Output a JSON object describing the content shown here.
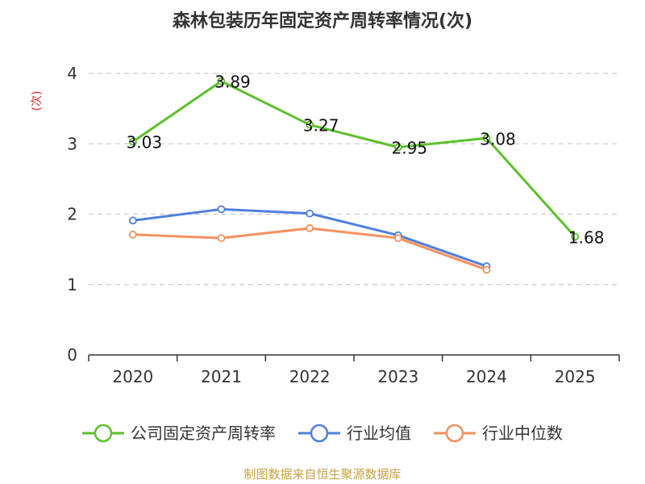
{
  "chart_data": {
    "type": "line",
    "title": "森林包装历年固定资产周转率情况(次)",
    "ylabel": "(次)",
    "xlabel": "",
    "categories": [
      "2020",
      "2021",
      "2022",
      "2023",
      "2024",
      "2025"
    ],
    "ylim": [
      0,
      4
    ],
    "yticks": [
      0,
      1,
      2,
      3,
      4
    ],
    "grid": true,
    "legend_position": "bottom",
    "series": [
      {
        "name": "公司固定资产周转率",
        "color": "#5cc02c",
        "values": [
          3.03,
          3.89,
          3.27,
          2.95,
          3.08,
          1.68
        ],
        "labels": [
          "3.03",
          "3.89",
          "3.27",
          "2.95",
          "3.08",
          "1.68"
        ]
      },
      {
        "name": "行业均值",
        "color": "#4f7fdc",
        "values": [
          1.91,
          2.07,
          2.01,
          1.7,
          1.26,
          null
        ]
      },
      {
        "name": "行业中位数",
        "color": "#f59160",
        "values": [
          1.71,
          1.66,
          1.8,
          1.66,
          1.21,
          null
        ]
      }
    ]
  },
  "source": "制图数据来自恒生聚源数据库"
}
